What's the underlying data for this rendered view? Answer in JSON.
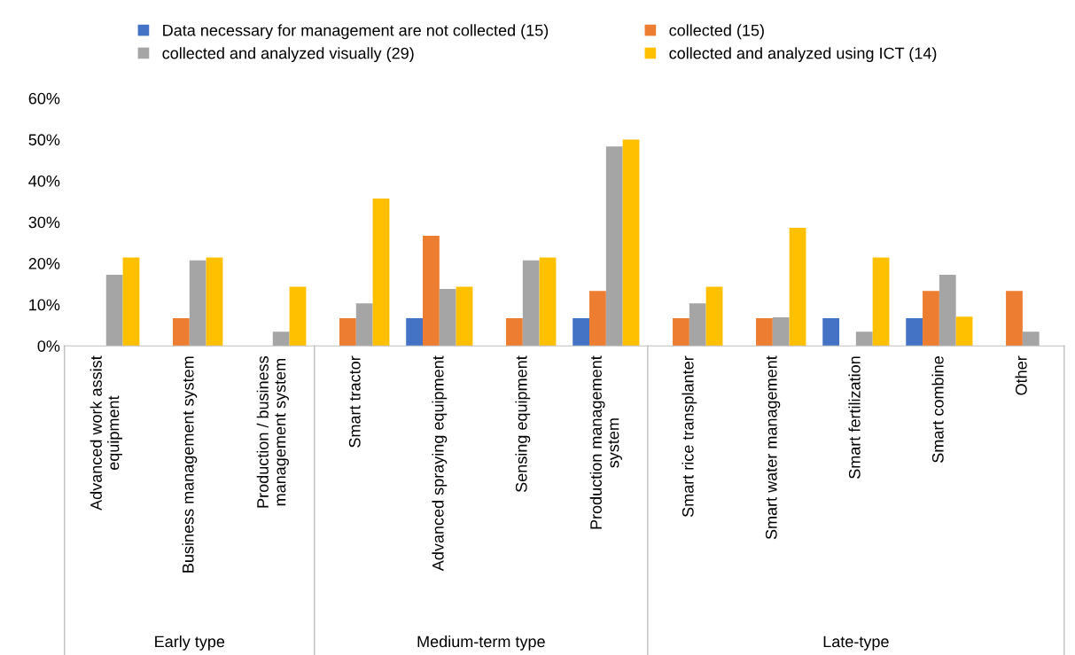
{
  "chart_data": {
    "type": "bar",
    "categories": [
      "Advanced work assist\nequipment",
      "Business management system",
      "Production / business\nmanagement system",
      "Smart tractor",
      "Advanced spraying equipment",
      "Sensing equipment",
      "Production management\nsystem",
      "Smart rice transplanter",
      "Smart water management",
      "Smart fertilization",
      "Smart combine",
      "Other"
    ],
    "series": [
      {
        "name": "Data necessary for management are not collected (15)",
        "color": "#4472c4",
        "values": [
          0,
          0,
          0,
          0,
          6.7,
          0,
          6.7,
          0,
          0,
          6.7,
          6.7,
          0
        ]
      },
      {
        "name": "collected (15)",
        "color": "#ed7d31",
        "values": [
          0,
          6.7,
          0,
          6.7,
          26.7,
          6.7,
          13.3,
          6.7,
          6.7,
          0,
          13.3,
          13.3
        ]
      },
      {
        "name": "collected and analyzed visually (29)",
        "color": "#a5a5a5",
        "values": [
          17.2,
          20.7,
          3.4,
          10.3,
          13.8,
          20.7,
          48.3,
          10.3,
          6.9,
          3.4,
          17.2,
          3.4
        ]
      },
      {
        "name": "collected and analyzed using ICT (14)",
        "color": "#ffc000",
        "values": [
          21.4,
          21.4,
          14.3,
          35.7,
          14.3,
          21.4,
          50,
          14.3,
          28.6,
          21.4,
          7.1,
          0
        ]
      }
    ],
    "ylim": [
      0,
      60
    ],
    "yticks": [
      {
        "value": 0,
        "label": "0%"
      },
      {
        "value": 10,
        "label": "10%"
      },
      {
        "value": 20,
        "label": "20%"
      },
      {
        "value": 30,
        "label": "30%"
      },
      {
        "value": 40,
        "label": "40%"
      },
      {
        "value": 50,
        "label": "50%"
      },
      {
        "value": 60,
        "label": "60%"
      }
    ],
    "annotations": [
      "Early type",
      "Medium-term type",
      "Late-type"
    ],
    "legend": "top",
    "grid": false
  }
}
